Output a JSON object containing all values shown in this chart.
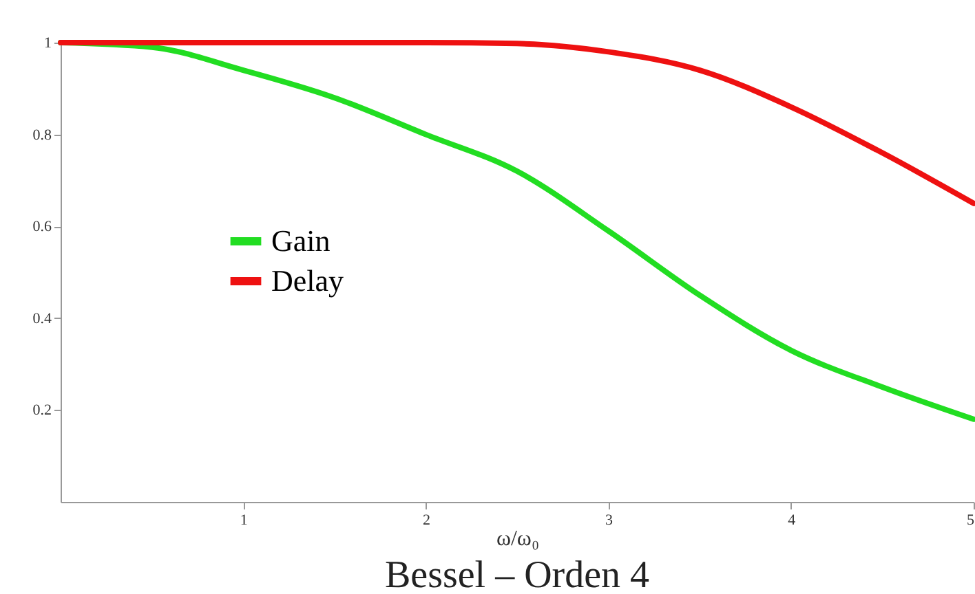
{
  "chart_data": {
    "type": "line",
    "title": "Bessel – Orden 4",
    "xlabel": "ω/ω₀",
    "xlim": [
      0,
      5
    ],
    "xticks": [
      1,
      2,
      3,
      4,
      5
    ],
    "ylim": [
      0,
      1
    ],
    "yticks": [
      0.2,
      0.4,
      0.6,
      0.8,
      1
    ],
    "grid": false,
    "legend": "center left",
    "marker": "none",
    "line_style": "solid",
    "series": [
      {
        "name": "Gain",
        "color": "#22dd22",
        "x": [
          0,
          0.5,
          1,
          1.5,
          2,
          2.5,
          3,
          3.5,
          4,
          4.5,
          5
        ],
        "values": [
          1,
          0.99,
          0.94,
          0.88,
          0.8,
          0.72,
          0.59,
          0.45,
          0.33,
          0.25,
          0.18
        ]
      },
      {
        "name": "Delay",
        "color": "#ee1111",
        "x": [
          0,
          0.5,
          1,
          1.5,
          2,
          2.5,
          3,
          3.5,
          4,
          4.5,
          5
        ],
        "values": [
          1,
          1,
          1,
          1,
          1,
          0.998,
          0.98,
          0.94,
          0.86,
          0.76,
          0.65
        ]
      }
    ]
  }
}
